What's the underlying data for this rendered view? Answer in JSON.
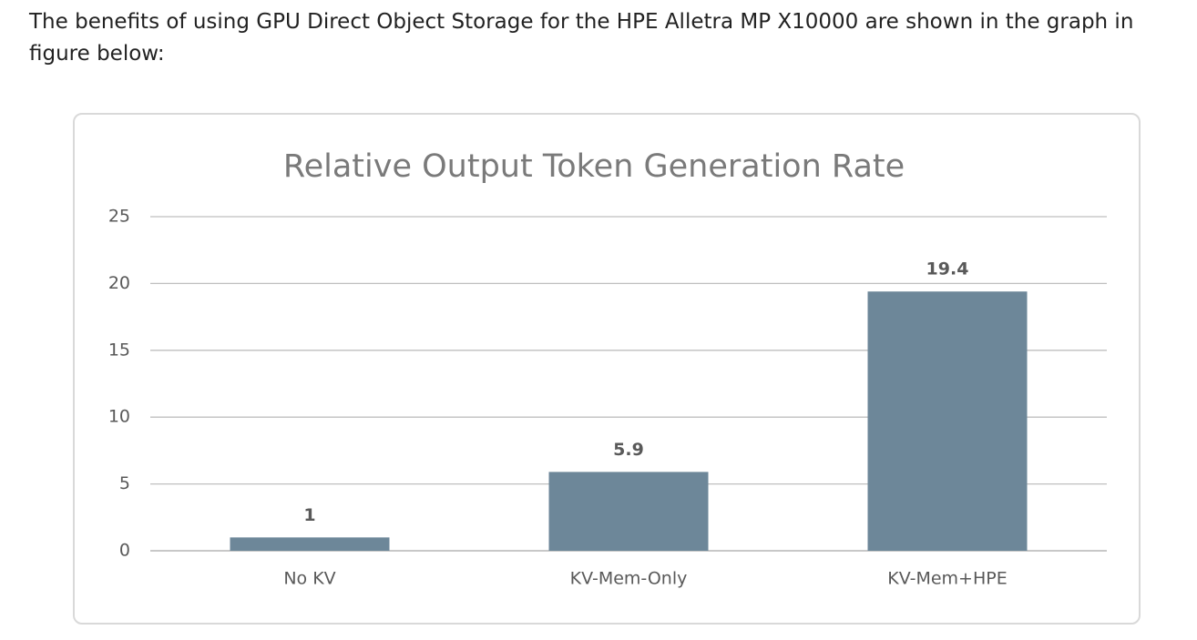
{
  "intro": "The benefits of using GPU Direct Object Storage for the HPE Alletra MP X10000 are shown in the graph in figure below:",
  "chart_data": {
    "type": "bar",
    "title": "Relative Output Token Generation Rate",
    "categories": [
      "No KV",
      "KV-Mem-Only",
      "KV-Mem+HPE"
    ],
    "values": [
      1,
      5.9,
      19.4
    ],
    "color": "#6d8799",
    "ylim": [
      0,
      25
    ],
    "yticks": [
      0,
      5,
      10,
      15,
      20,
      25
    ],
    "grid": true
  }
}
